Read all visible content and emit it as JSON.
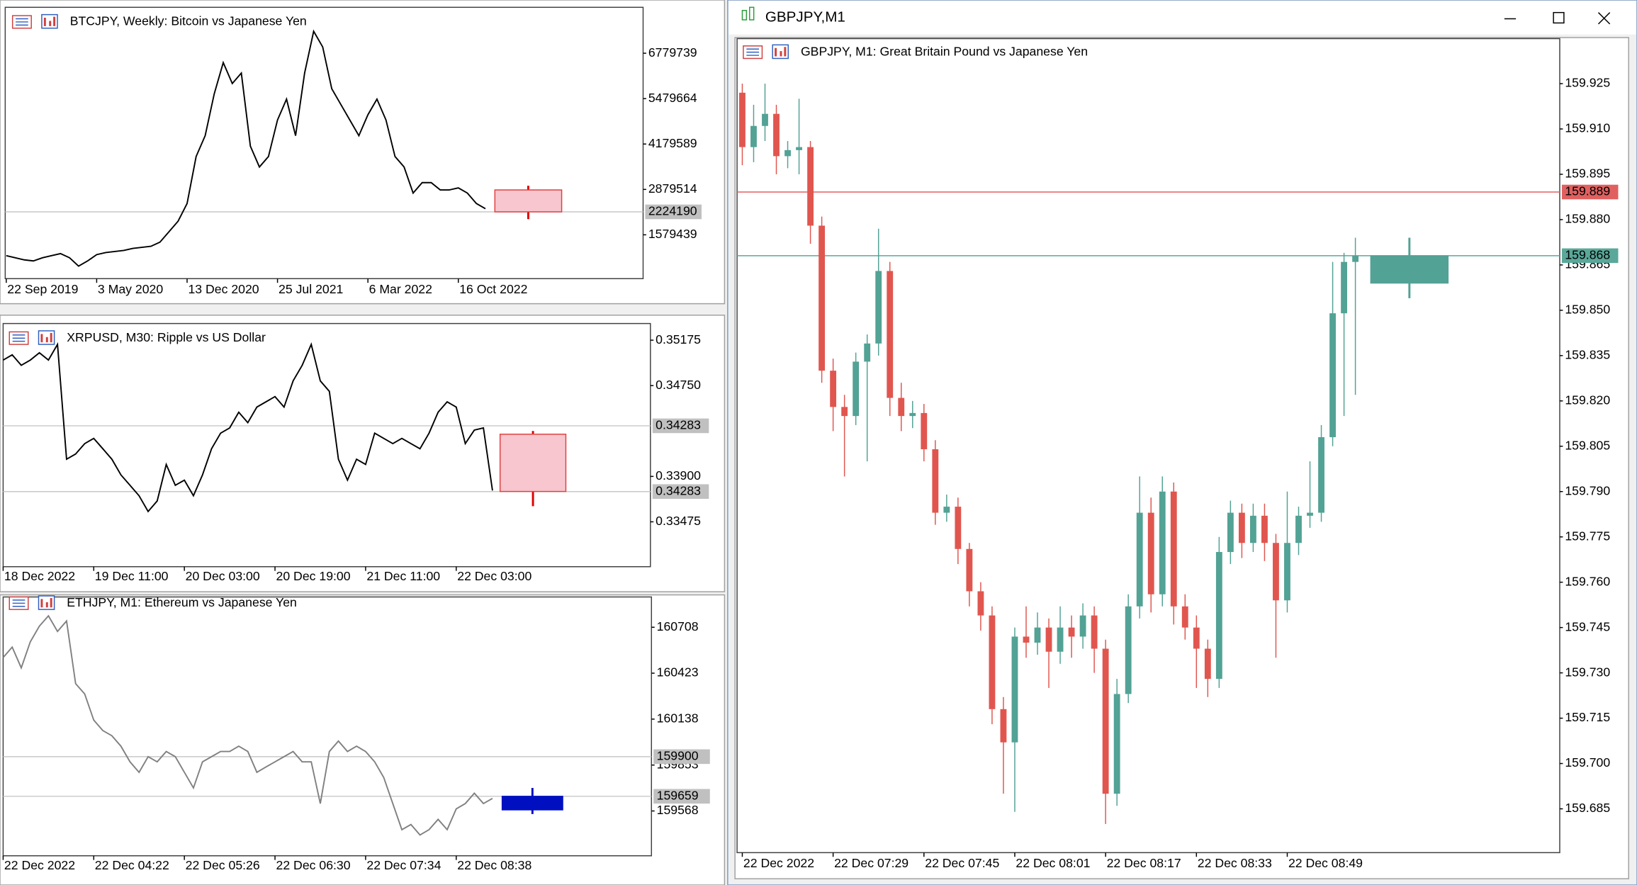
{
  "windows": [
    {
      "title": "BTCJPY, Weekly:  Bitcoin vs Japanese Yen",
      "chart": {
        "type": "line",
        "color": "#000000",
        "categories": [
          "22 Sep 2019",
          null,
          null,
          null,
          null,
          null,
          null,
          null,
          null,
          null,
          "3 May 2020",
          null,
          null,
          null,
          null,
          null,
          null,
          null,
          null,
          null,
          "13 Dec 2020",
          null,
          null,
          null,
          null,
          null,
          null,
          null,
          null,
          null,
          "25 Jul 2021",
          null,
          null,
          null,
          null,
          null,
          null,
          null,
          null,
          null,
          "6 Mar 2022",
          null,
          null,
          null,
          null,
          null,
          null,
          null,
          null,
          null,
          "16 Oct 2022",
          null,
          null,
          null
        ],
        "values": [
          982000,
          922000,
          862000,
          832000,
          922000,
          982000,
          1041000,
          922000,
          683000,
          832000,
          1012000,
          1071000,
          1101000,
          1131000,
          1191000,
          1221000,
          1251000,
          1370000,
          1669000,
          1968000,
          2476000,
          3821000,
          4419000,
          5614000,
          6511000,
          5913000,
          6212000,
          4120000,
          3522000,
          3821000,
          4867000,
          5465000,
          4419000,
          6212000,
          7408000,
          6959000,
          5764000,
          5315000,
          4867000,
          4419000,
          5017000,
          5465000,
          4867000,
          3821000,
          3522000,
          2775000,
          3074000,
          3074000,
          2865000,
          2865000,
          2924000,
          2775000,
          2476000,
          2327000
        ],
        "ylim": [
          324000,
          8095000
        ],
        "yticks": [
          1579439,
          2879514,
          4179589,
          5479664,
          6779739
        ],
        "price_labels": [
          "2224190"
        ],
        "current_bar": {
          "open": 2865000,
          "high": 2984000,
          "low": 2028000,
          "close": 2237000,
          "color": "#f7c6cf",
          "wick_color": "#e00000"
        }
      }
    },
    {
      "title": "XRPUSD, M30:  Ripple vs US Dollar",
      "chart": {
        "type": "line",
        "color": "#000000",
        "categories": [
          "18 Dec 2022",
          null,
          null,
          null,
          null,
          null,
          null,
          null,
          null,
          null,
          "19 Dec 11:00",
          null,
          null,
          null,
          null,
          null,
          null,
          null,
          null,
          null,
          "20 Dec 03:00",
          null,
          null,
          null,
          null,
          null,
          null,
          null,
          null,
          null,
          "20 Dec 19:00",
          null,
          null,
          null,
          null,
          null,
          null,
          null,
          null,
          null,
          "21 Dec 11:00",
          null,
          null,
          null,
          null,
          null,
          null,
          null,
          null,
          null,
          "22 Dec 03:00",
          null,
          null,
          null,
          null
        ],
        "values": [
          0.34989,
          0.35038,
          0.3494,
          0.34989,
          0.35057,
          0.34989,
          0.35136,
          0.34061,
          0.3411,
          0.34207,
          0.34256,
          0.34159,
          0.34061,
          0.33914,
          0.33817,
          0.33719,
          0.33572,
          0.3367,
          0.34012,
          0.33817,
          0.33865,
          0.33719,
          0.33914,
          0.34159,
          0.34305,
          0.34354,
          0.34501,
          0.34403,
          0.34549,
          0.34598,
          0.34647,
          0.34549,
          0.34794,
          0.3494,
          0.35136,
          0.34794,
          0.34696,
          0.34061,
          0.33865,
          0.34061,
          0.34012,
          0.34305,
          0.34256,
          0.34207,
          0.34256,
          0.34207,
          0.34159,
          0.34305,
          0.34501,
          0.34598,
          0.34549,
          0.34207,
          0.34334,
          0.34354,
          0.33768
        ],
        "ylim": [
          0.33055,
          0.35331
        ],
        "yticks": [
          {
            "value": 0.339,
            "label": "0.33900"
          },
          0.33475,
          {
            "value": 0.3475,
            "label": "0.34750"
          },
          0.35175
        ],
        "price_labels": [
          "0.34283",
          "0.34283"
        ],
        "current_bar": {
          "open": 0.34295,
          "high": 0.34325,
          "low": 0.33621,
          "close": 0.33759,
          "color": "#f7c6cf",
          "wick_color": "#e00000"
        }
      }
    },
    {
      "title": "ETHJPY, M1:  Ethereum vs Japanese Yen",
      "chart": {
        "type": "line",
        "color": "#808080",
        "categories": [
          "22 Dec 2022",
          null,
          null,
          null,
          null,
          null,
          null,
          null,
          null,
          null,
          "22 Dec 04:22",
          null,
          null,
          null,
          null,
          null,
          null,
          null,
          null,
          null,
          "22 Dec 05:26",
          null,
          null,
          null,
          null,
          null,
          null,
          null,
          null,
          null,
          "22 Dec 06:30",
          null,
          null,
          null,
          null,
          null,
          null,
          null,
          null,
          null,
          "22 Dec 07:34",
          null,
          null,
          null,
          null,
          null,
          null,
          null,
          null,
          null,
          "22 Dec 08:38",
          null,
          null,
          null,
          null
        ],
        "values": [
          160520,
          160585,
          160456,
          160618,
          160715,
          160779,
          160682,
          160747,
          160358,
          160294,
          160132,
          160067,
          160035,
          159970,
          159873,
          159808,
          159905,
          159873,
          159937,
          159905,
          159808,
          159711,
          159873,
          159905,
          159937,
          159937,
          159970,
          159937,
          159808,
          159841,
          159873,
          159905,
          159937,
          159873,
          159873,
          159614,
          159937,
          160002,
          159937,
          159970,
          159937,
          159873,
          159776,
          159614,
          159452,
          159484,
          159419,
          159452,
          159516,
          159452,
          159581,
          159614,
          159678,
          159614,
          159646
        ],
        "ylim": [
          159290,
          160896
        ],
        "yticks": [
          159568,
          159853,
          160138,
          160423,
          160708
        ],
        "price_labels": [
          "159900",
          "159659"
        ],
        "current_bar": {
          "open": 159575,
          "high": 159711,
          "low": 159549,
          "close": 159659,
          "color": "#0010c0",
          "wick_color": "#0010c0"
        }
      }
    },
    {
      "caption": "GBPJPY,M1",
      "title": "GBPJPY, M1:  Great Britain Pound vs Japanese Yen",
      "chart": {
        "type": "candlestick",
        "up_color": "#52a295",
        "down_color": "#e0564f",
        "categories": [
          "22 Dec 2022",
          null,
          null,
          null,
          null,
          null,
          null,
          null,
          "22 Dec 07:29",
          null,
          null,
          null,
          null,
          null,
          null,
          null,
          "22 Dec 07:45",
          null,
          null,
          null,
          null,
          null,
          null,
          null,
          "22 Dec 08:01",
          null,
          null,
          null,
          null,
          null,
          null,
          null,
          "22 Dec 08:17",
          null,
          null,
          null,
          null,
          null,
          null,
          null,
          "22 Dec 08:33",
          null,
          null,
          null,
          null,
          null,
          null,
          null,
          "22 Dec 08:49",
          null,
          null,
          null,
          null,
          null,
          null
        ],
        "open": [
          159.922,
          159.904,
          159.911,
          159.915,
          159.901,
          159.903,
          159.904,
          159.878,
          159.83,
          159.818,
          159.815,
          159.833,
          159.839,
          159.863,
          159.821,
          159.815,
          159.816,
          159.804,
          159.783,
          159.785,
          159.771,
          159.757,
          159.749,
          159.718,
          159.707,
          159.742,
          159.74,
          159.745,
          159.737,
          159.745,
          159.742,
          159.749,
          159.738,
          159.69,
          159.723,
          159.752,
          159.783,
          159.756,
          159.79,
          159.752,
          159.745,
          159.738,
          159.728,
          159.77,
          159.783,
          159.773,
          159.782,
          159.773,
          159.754,
          159.773,
          159.782,
          159.783,
          159.808,
          159.849,
          159.866
        ],
        "high": [
          159.925,
          159.918,
          159.925,
          159.918,
          159.906,
          159.92,
          159.906,
          159.881,
          159.834,
          159.822,
          159.836,
          159.842,
          159.877,
          159.866,
          159.826,
          159.82,
          159.819,
          159.807,
          159.789,
          159.788,
          159.773,
          159.76,
          159.752,
          159.722,
          159.745,
          159.752,
          159.75,
          159.748,
          159.752,
          159.749,
          159.753,
          159.752,
          159.741,
          159.728,
          159.756,
          159.795,
          159.788,
          159.795,
          159.793,
          159.756,
          159.749,
          159.741,
          159.775,
          159.787,
          159.786,
          159.786,
          159.786,
          159.776,
          159.79,
          159.785,
          159.8,
          159.812,
          159.866,
          159.869,
          159.874
        ],
        "low": [
          159.898,
          159.899,
          159.906,
          159.895,
          159.897,
          159.895,
          159.872,
          159.826,
          159.81,
          159.795,
          159.812,
          159.8,
          159.835,
          159.815,
          159.81,
          159.811,
          159.8,
          159.779,
          159.78,
          159.766,
          159.752,
          159.744,
          159.713,
          159.69,
          159.684,
          159.735,
          159.736,
          159.725,
          159.733,
          159.735,
          159.738,
          159.73,
          159.68,
          159.686,
          159.72,
          159.748,
          159.75,
          159.752,
          159.746,
          159.741,
          159.725,
          159.722,
          159.725,
          159.766,
          159.768,
          159.77,
          159.767,
          159.735,
          159.75,
          159.769,
          159.778,
          159.78,
          159.805,
          159.815,
          159.822
        ],
        "close": [
          159.904,
          159.911,
          159.915,
          159.901,
          159.903,
          159.904,
          159.878,
          159.83,
          159.818,
          159.815,
          159.833,
          159.839,
          159.863,
          159.821,
          159.815,
          159.816,
          159.804,
          159.783,
          159.785,
          159.771,
          159.757,
          159.749,
          159.718,
          159.707,
          159.742,
          159.74,
          159.745,
          159.737,
          159.745,
          159.742,
          159.749,
          159.738,
          159.69,
          159.723,
          159.752,
          159.783,
          159.756,
          159.79,
          159.752,
          159.745,
          159.738,
          159.728,
          159.77,
          159.783,
          159.773,
          159.782,
          159.773,
          159.754,
          159.773,
          159.782,
          159.783,
          159.808,
          159.849,
          159.866,
          159.868
        ],
        "ylim": [
          159.6705,
          159.9399
        ],
        "yticks": [
          159.685,
          {
            "value": 159.7,
            "label": "159.700"
          },
          159.715,
          {
            "value": 159.73,
            "label": "159.730"
          },
          159.745,
          {
            "value": 159.76,
            "label": "159.760"
          },
          159.775,
          {
            "value": 159.79,
            "label": "159.790"
          },
          159.805,
          {
            "value": 159.82,
            "label": "159.820"
          },
          159.835,
          {
            "value": 159.85,
            "label": "159.850"
          },
          159.865,
          {
            "value": 159.88,
            "label": "159.880"
          },
          159.895,
          {
            "value": 159.91,
            "label": "159.910"
          },
          159.925
        ],
        "price_labels": [
          "159.889",
          "159.868"
        ],
        "current_bar": {
          "open": 159.859,
          "high": 159.874,
          "low": 159.854,
          "close": 159.868,
          "color": "#52a295",
          "wick_color": "#52a295"
        }
      }
    }
  ]
}
